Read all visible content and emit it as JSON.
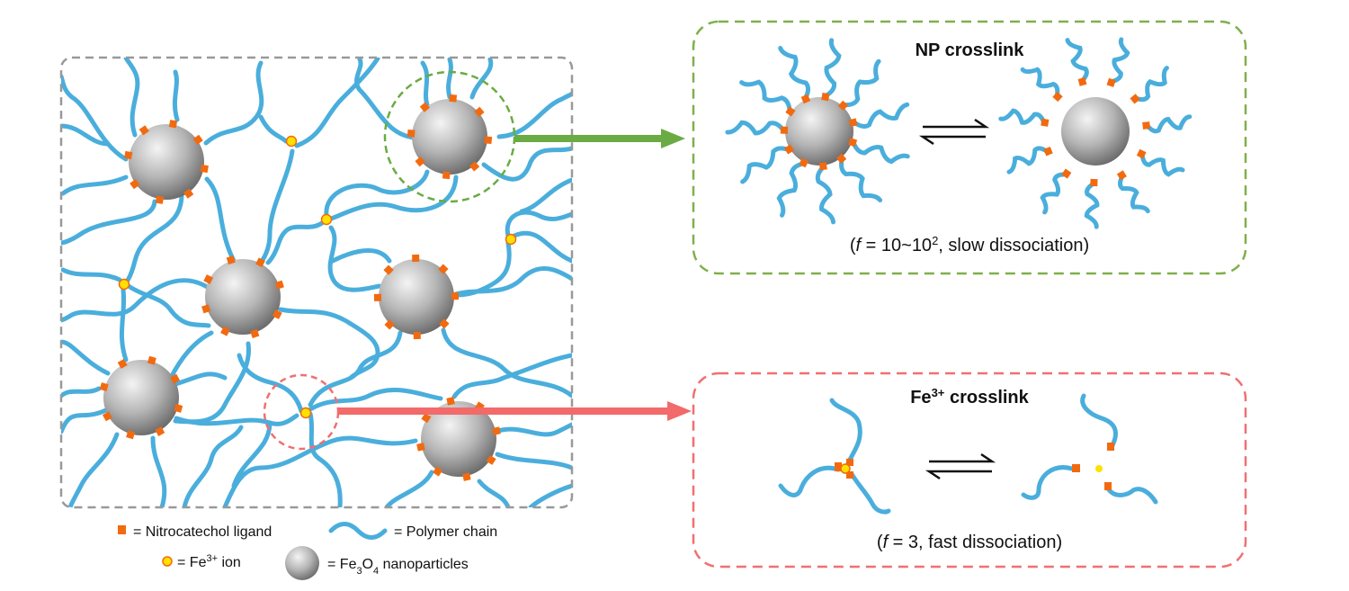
{
  "network": {
    "label": ""
  },
  "np_panel": {
    "title": "NP crosslink",
    "note_open": "(",
    "note_var": "f",
    "note_eq": " = 10~10",
    "note_sup": "2",
    "note_rest": ", slow dissociation)"
  },
  "fe_panel": {
    "title_pre": "Fe",
    "title_sup": "3+",
    "title_post": " crosslink",
    "note_open": "(",
    "note_var": "f",
    "note_rest": " = 3, fast dissociation)"
  },
  "legend": {
    "ligand": "= Nitrocatechol ligand",
    "polymer": "= Polymer chain",
    "ion_pre": "= Fe",
    "ion_sup": "3+",
    "ion_post": " ion",
    "np_pre": "= Fe",
    "np_sub1": "3",
    "np_mid": "O",
    "np_sub2": "4",
    "np_post": " nanoparticles"
  },
  "colors": {
    "polymer": "#4aaedc",
    "ligand": "#f26a10",
    "ion": "#ffe100",
    "np_border": "#7fb04b",
    "fe_border": "#f07070",
    "network_border": "#999999"
  }
}
